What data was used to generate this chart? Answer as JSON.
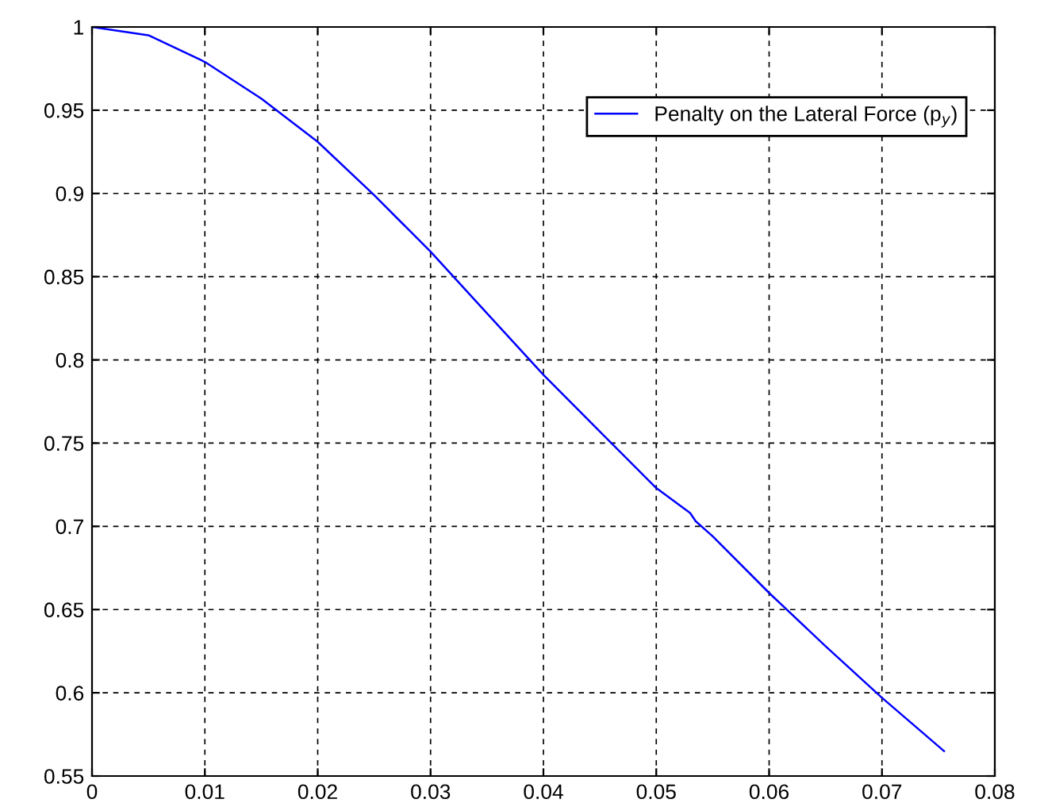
{
  "chart_data": {
    "type": "line",
    "x": [
      0,
      0.005,
      0.01,
      0.015,
      0.02,
      0.025,
      0.03,
      0.035,
      0.04,
      0.045,
      0.05,
      0.053,
      0.0535,
      0.055,
      0.06,
      0.065,
      0.07,
      0.0755
    ],
    "series": [
      {
        "name": "Penalty on the Lateral Force (p$_{y}$)",
        "color": "#0000ff",
        "values": [
          1,
          0.995,
          0.979,
          0.957,
          0.931,
          0.899,
          0.865,
          0.828,
          0.791,
          0.757,
          0.723,
          0.708,
          0.703,
          0.694,
          0.66,
          0.628,
          0.597,
          0.565
        ]
      }
    ],
    "xlim": [
      0,
      0.08
    ],
    "xticks": [
      0,
      0.01,
      0.02,
      0.03,
      0.04,
      0.05,
      0.06,
      0.07,
      0.08
    ],
    "ylim": [
      0.55,
      1
    ],
    "yticks": [
      0.55,
      0.6,
      0.65,
      0.7,
      0.75,
      0.8,
      0.85,
      0.9,
      0.95,
      1
    ],
    "grid": true,
    "legend": "top right",
    "line_style": "solid",
    "marker": "none"
  }
}
